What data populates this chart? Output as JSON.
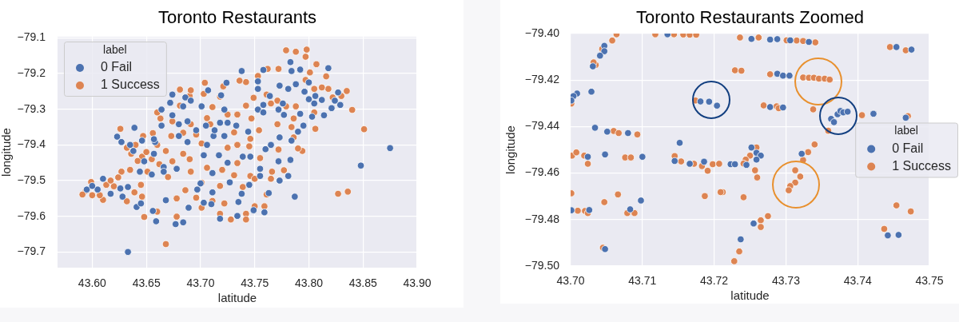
{
  "chart_data": [
    {
      "type": "scatter",
      "title": "Toronto Restaurants",
      "xlabel": "latitude",
      "ylabel": "longitude",
      "legend_title": "label",
      "legend": "top left",
      "grid": true,
      "marker": "circle",
      "xlim": [
        43.568,
        43.9
      ],
      "ylim": [
        -79.744,
        -79.097
      ],
      "xticks": [
        {
          "value": 43.6,
          "label": "43.60"
        },
        {
          "value": 43.65,
          "label": "43.65"
        },
        {
          "value": 43.7,
          "label": "43.70"
        },
        {
          "value": 43.75,
          "label": "43.75"
        },
        {
          "value": 43.8,
          "label": "43.80"
        },
        {
          "value": 43.85,
          "label": "43.85"
        },
        {
          "value": 43.9,
          "label": "43.90"
        }
      ],
      "yticks": [
        {
          "value": -79.7,
          "label": "−79.7"
        },
        {
          "value": -79.6,
          "label": "−79.6"
        },
        {
          "value": -79.5,
          "label": "−79.5"
        },
        {
          "value": -79.4,
          "label": "−79.4"
        },
        {
          "value": -79.3,
          "label": "−79.3"
        },
        {
          "value": -79.2,
          "label": "−79.2"
        },
        {
          "value": -79.1,
          "label": "−79.1"
        }
      ],
      "series": [
        {
          "name": "0 Fail",
          "color": "#4c72b0",
          "x": [
            43.633,
            43.875,
            43.848,
            43.787,
            43.818,
            43.783,
            43.759,
            43.749,
            43.734,
            43.718,
            43.689,
            43.677,
            43.684,
            43.659,
            43.656,
            43.641,
            43.645,
            43.633,
            43.617,
            43.61,
            43.605,
            43.595,
            43.626,
            43.623,
            43.639,
            43.627,
            43.635,
            43.664,
            43.672,
            43.686,
            43.691,
            43.707,
            43.719,
            43.724,
            43.738,
            43.758,
            43.753,
            43.781,
            43.8,
            43.805,
            43.812,
            43.821,
            43.829,
            43.824,
            43.827,
            43.814,
            43.792,
            43.79,
            43.784,
            43.777,
            43.773,
            43.765,
            43.773,
            43.781,
            43.783,
            43.772,
            43.755,
            43.755,
            43.738,
            43.725,
            43.722,
            43.717,
            43.711,
            43.711,
            43.703,
            43.71,
            43.703,
            43.705,
            43.712,
            43.701,
            43.688,
            43.68,
            43.678,
            43.666,
            43.657,
            43.658,
            43.664,
            43.674,
            43.684,
            43.674,
            43.644,
            43.655,
            43.666,
            43.744,
            43.739,
            43.746,
            43.733,
            43.753,
            43.758,
            43.764,
            43.758,
            43.772,
            43.776,
            43.795,
            43.803,
            43.806,
            43.796,
            43.788,
            43.784,
            43.792,
            43.773,
            43.753,
            43.722,
            43.718,
            43.725,
            43.713,
            43.696,
            43.706,
            43.688,
            43.68,
            43.657,
            43.646,
            43.638,
            43.648,
            43.6,
            43.628,
            43.668,
            43.7,
            43.727,
            43.745,
            43.763,
            43.735,
            43.697,
            43.76,
            43.8
          ],
          "values": [
            -79.7,
            -79.409,
            -79.458,
            -79.545,
            -79.185,
            -79.168,
            -79.589,
            -79.583,
            -79.599,
            -79.607,
            -79.576,
            -79.622,
            -79.617,
            -79.614,
            -79.585,
            -79.574,
            -79.564,
            -79.518,
            -79.537,
            -79.495,
            -79.525,
            -79.525,
            -79.522,
            -79.377,
            -79.352,
            -79.392,
            -79.4,
            -79.301,
            -79.282,
            -79.267,
            -79.276,
            -79.247,
            -79.261,
            -79.226,
            -79.193,
            -79.19,
            -79.222,
            -79.243,
            -79.272,
            -79.284,
            -79.274,
            -79.297,
            -79.288,
            -79.276,
            -79.253,
            -79.317,
            -79.313,
            -79.363,
            -79.388,
            -79.316,
            -79.379,
            -79.4,
            -79.5,
            -79.487,
            -79.442,
            -79.446,
            -79.467,
            -79.487,
            -79.537,
            -79.45,
            -79.375,
            -79.429,
            -79.479,
            -79.533,
            -79.562,
            -79.566,
            -79.429,
            -79.346,
            -79.375,
            -79.292,
            -79.392,
            -79.375,
            -79.467,
            -79.462,
            -79.425,
            -79.392,
            -79.346,
            -79.317,
            -79.292,
            -79.259,
            -79.475,
            -79.483,
            -79.475,
            -79.363,
            -79.433,
            -79.433,
            -79.346,
            -79.301,
            -79.309,
            -79.263,
            -79.288,
            -79.301,
            -79.284,
            -79.346,
            -79.321,
            -79.263,
            -79.251,
            -79.23,
            -79.193,
            -79.189,
            -79.234,
            -79.243,
            -79.301,
            -79.338,
            -79.338,
            -79.359,
            -79.359,
            -79.4,
            -79.334,
            -79.342,
            -79.384,
            -79.388,
            -79.417,
            -79.446,
            -79.515,
            -79.545,
            -79.555,
            -79.508,
            -79.505,
            -79.512,
            -79.535,
            -79.56,
            -79.525,
            -79.412,
            -79.225
          ]
        },
        {
          "name": "1 Success",
          "color": "#dd8452",
          "x": [
            43.668,
            43.827,
            43.836,
            43.851,
            43.84,
            43.835,
            43.807,
            43.798,
            43.788,
            43.779,
            43.797,
            43.816,
            43.801,
            43.797,
            43.805,
            43.805,
            43.806,
            43.794,
            43.786,
            43.784,
            43.779,
            43.771,
            43.771,
            43.772,
            43.777,
            43.766,
            43.761,
            43.759,
            43.75,
            43.742,
            43.742,
            43.728,
            43.722,
            43.718,
            43.711,
            43.701,
            43.696,
            43.678,
            43.678,
            43.686,
            43.701,
            43.691,
            43.706,
            43.718,
            43.731,
            43.734,
            43.746,
            43.75,
            43.739,
            43.755,
            43.746,
            43.745,
            43.734,
            43.725,
            43.731,
            43.734,
            43.742,
            43.742,
            43.736,
            43.753,
            43.762,
            43.772,
            43.761,
            43.721,
            43.718,
            43.725,
            43.711,
            43.703,
            43.69,
            43.681,
            43.681,
            43.691,
            43.706,
            43.709,
            43.696,
            43.701,
            43.691,
            43.684,
            43.674,
            43.663,
            43.656,
            43.647,
            43.64,
            43.636,
            43.646,
            43.668,
            43.674,
            43.662,
            43.684,
            43.673,
            43.651,
            43.645,
            43.646,
            43.639,
            43.648,
            43.66,
            43.632,
            43.627,
            43.624,
            43.62,
            43.613,
            43.61,
            43.599,
            43.594,
            43.591,
            43.6,
            43.607,
            43.626,
            43.632,
            43.66,
            43.704,
            43.818,
            43.822,
            43.83,
            43.812,
            43.788,
            43.786,
            43.765,
            43.749,
            43.754,
            43.747,
            43.65,
            43.655,
            43.642,
            43.66,
            43.617,
            43.635,
            43.67,
            43.69,
            43.72,
            43.765,
            43.79
          ],
          "values": [
            -79.678,
            -79.537,
            -79.531,
            -79.356,
            -79.302,
            -79.249,
            -79.174,
            -79.133,
            -79.139,
            -79.135,
            -79.153,
            -79.208,
            -79.197,
            -79.218,
            -79.243,
            -79.309,
            -79.355,
            -79.417,
            -79.379,
            -79.35,
            -79.292,
            -79.276,
            -79.342,
            -79.413,
            -79.471,
            -79.475,
            -79.539,
            -79.572,
            -79.572,
            -79.593,
            -79.609,
            -79.609,
            -79.564,
            -79.593,
            -79.557,
            -79.576,
            -79.548,
            -79.55,
            -79.601,
            -79.527,
            -79.506,
            -79.475,
            -79.464,
            -79.515,
            -79.485,
            -79.451,
            -79.487,
            -79.495,
            -79.518,
            -79.437,
            -79.383,
            -79.404,
            -79.4,
            -79.408,
            -79.365,
            -79.315,
            -79.29,
            -79.224,
            -79.22,
            -79.207,
            -79.187,
            -79.187,
            -79.259,
            -79.236,
            -79.265,
            -79.315,
            -79.294,
            -79.257,
            -79.263,
            -79.29,
            -79.245,
            -79.247,
            -79.325,
            -79.342,
            -79.371,
            -79.396,
            -79.342,
            -79.366,
            -79.334,
            -79.326,
            -79.367,
            -79.375,
            -79.4,
            -79.425,
            -79.433,
            -79.417,
            -79.446,
            -79.454,
            -79.425,
            -79.375,
            -79.475,
            -79.512,
            -79.545,
            -79.533,
            -79.602,
            -79.587,
            -79.558,
            -79.475,
            -79.491,
            -79.516,
            -79.512,
            -79.554,
            -79.504,
            -79.529,
            -79.539,
            -79.541,
            -79.541,
            -79.355,
            -79.408,
            -79.309,
            -79.226,
            -79.243,
            -79.267,
            -79.263,
            -79.239,
            -79.292,
            -79.326,
            -79.284,
            -79.268,
            -79.359,
            -79.326,
            -79.42,
            -79.44,
            -79.445,
            -79.4,
            -79.5,
            -79.47,
            -79.49,
            -79.44,
            -79.47,
            -79.495,
            -79.41
          ]
        }
      ]
    },
    {
      "type": "scatter",
      "title": "Toronto Restaurants Zoomed",
      "xlabel": "latitude",
      "ylabel": "longitude",
      "legend_title": "label",
      "legend": "right",
      "grid": true,
      "marker": "circle",
      "xlim": [
        43.7,
        43.75
      ],
      "ylim": [
        -79.5,
        -79.4
      ],
      "xticks": [
        {
          "value": 43.7,
          "label": "43.70"
        },
        {
          "value": 43.71,
          "label": "43.71"
        },
        {
          "value": 43.72,
          "label": "43.72"
        },
        {
          "value": 43.73,
          "label": "43.73"
        },
        {
          "value": 43.74,
          "label": "43.74"
        },
        {
          "value": 43.75,
          "label": "43.75"
        }
      ],
      "yticks": [
        {
          "value": -79.5,
          "label": "−79.50"
        },
        {
          "value": -79.48,
          "label": "−79.48"
        },
        {
          "value": -79.46,
          "label": "−79.46"
        },
        {
          "value": -79.44,
          "label": "−79.44"
        },
        {
          "value": -79.42,
          "label": "−79.42"
        },
        {
          "value": -79.4,
          "label": "−79.40"
        }
      ],
      "series": [
        {
          "name": "0 Fail",
          "color": "#4c72b0",
          "x": [
            43.7135,
            43.7252,
            43.7278,
            43.7288,
            43.7306,
            43.7332,
            43.7047,
            43.7047,
            43.7041,
            43.7031,
            43.7009,
            43.7004,
            43.7001,
            43.7029,
            43.7034,
            43.7051,
            43.708,
            43.7024,
            43.7048,
            43.71,
            43.7145,
            43.7152,
            43.7166,
            43.7186,
            43.7223,
            43.7229,
            43.7181,
            43.7193,
            43.7204,
            43.7288,
            43.7296,
            43.7305,
            43.7278,
            43.7296,
            43.7363,
            43.7367,
            43.7372,
            43.7376,
            43.738,
            43.7386,
            43.7422,
            43.7467,
            43.7454,
            43.7475,
            43.7252,
            43.7259,
            43.7265,
            43.7259,
            43.7245,
            43.7322,
            43.7026,
            43.7083,
            43.7098,
            43.7048,
            43.7442,
            43.7457,
            43.7255,
            43.7237,
            43.7001
          ],
          "values": [
            -79.4003,
            -79.4023,
            -79.4026,
            -79.4024,
            -79.4029,
            -79.4036,
            -79.4053,
            -79.4076,
            -79.4095,
            -79.4141,
            -79.4258,
            -79.4269,
            -79.4288,
            -79.425,
            -79.4405,
            -79.4422,
            -79.4428,
            -79.453,
            -79.452,
            -79.453,
            -79.4548,
            -79.447,
            -79.456,
            -79.4551,
            -79.4562,
            -79.4562,
            -79.4292,
            -79.4293,
            -79.431,
            -79.4173,
            -79.4181,
            -79.4181,
            -79.4316,
            -79.4318,
            -79.4367,
            -79.4381,
            -79.4347,
            -79.4333,
            -79.4339,
            -79.4336,
            -79.4345,
            -79.4362,
            -79.4058,
            -79.4069,
            -79.449,
            -79.4513,
            -79.4525,
            -79.4542,
            -79.4565,
            -79.4517,
            -79.4759,
            -79.4756,
            -79.4718,
            -79.4927,
            -79.4868,
            -79.4866,
            -79.4817,
            -79.4885,
            -79.476
          ]
        },
        {
          "name": "1 Success",
          "color": "#dd8452",
          "x": [
            43.7064,
            43.7118,
            43.7144,
            43.7157,
            43.7166,
            43.7175,
            43.7236,
            43.7262,
            43.7301,
            43.7315,
            43.7324,
            43.7341,
            43.7058,
            43.7044,
            43.7035,
            43.7032,
            43.7001,
            43.706,
            43.7067,
            43.7093,
            43.7002,
            43.7008,
            43.7019,
            43.7024,
            43.7076,
            43.7084,
            43.7145,
            43.7154,
            43.7172,
            43.7183,
            43.7191,
            43.7198,
            43.7207,
            43.7174,
            43.7001,
            43.701,
            43.702,
            43.7024,
            43.7047,
            43.7066,
            43.7079,
            43.7089,
            43.7045,
            43.7187,
            43.7212,
            43.7229,
            43.7238,
            43.7278,
            43.7324,
            43.7332,
            43.7339,
            43.7346,
            43.7354,
            43.7361,
            43.7269,
            43.7287,
            43.729,
            43.7338,
            43.7406,
            43.747,
            43.7445,
            43.7467,
            43.7359,
            43.7259,
            43.725,
            43.7244,
            43.7241,
            43.7257,
            43.726,
            43.7209,
            43.7241,
            43.7331,
            43.734,
            43.7324,
            43.7313,
            43.732,
            43.7313,
            43.7306,
            43.7304,
            43.7454,
            43.7474,
            43.7437,
            43.7265,
            43.7275,
            43.7265,
            43.7235,
            43.7228
          ],
          "values": [
            -79.4003,
            -79.4003,
            -79.4003,
            -79.4004,
            -79.4005,
            -79.4005,
            -79.4017,
            -79.4017,
            -79.4029,
            -79.403,
            -79.4032,
            -79.4038,
            -79.403,
            -79.4066,
            -79.4135,
            -79.4124,
            -79.4301,
            -79.4419,
            -79.4428,
            -79.4434,
            -79.4525,
            -79.4511,
            -79.4525,
            -79.456,
            -79.4533,
            -79.4533,
            -79.4527,
            -79.455,
            -79.456,
            -79.457,
            -79.459,
            -79.4562,
            -79.456,
            -79.4288,
            -79.4687,
            -79.4762,
            -79.4763,
            -79.4772,
            -79.4725,
            -79.4692,
            -79.4772,
            -79.4772,
            -79.4921,
            -79.4699,
            -79.4682,
            -79.4158,
            -79.416,
            -79.4175,
            -79.4189,
            -79.419,
            -79.419,
            -79.4194,
            -79.4194,
            -79.4198,
            -79.4309,
            -79.4313,
            -79.4321,
            -79.4326,
            -79.4351,
            -79.4355,
            -79.4058,
            -79.4072,
            -79.4418,
            -79.449,
            -79.4525,
            -79.4542,
            -79.4559,
            -79.4588,
            -79.4619,
            -79.4682,
            -79.4704,
            -79.451,
            -79.4477,
            -79.4544,
            -79.4588,
            -79.4615,
            -79.4641,
            -79.4656,
            -79.4674,
            -79.4739,
            -79.4765,
            -79.484,
            -79.4803,
            -79.4785,
            -79.4832,
            -79.4937,
            -79.4979
          ]
        }
      ]
    }
  ]
}
